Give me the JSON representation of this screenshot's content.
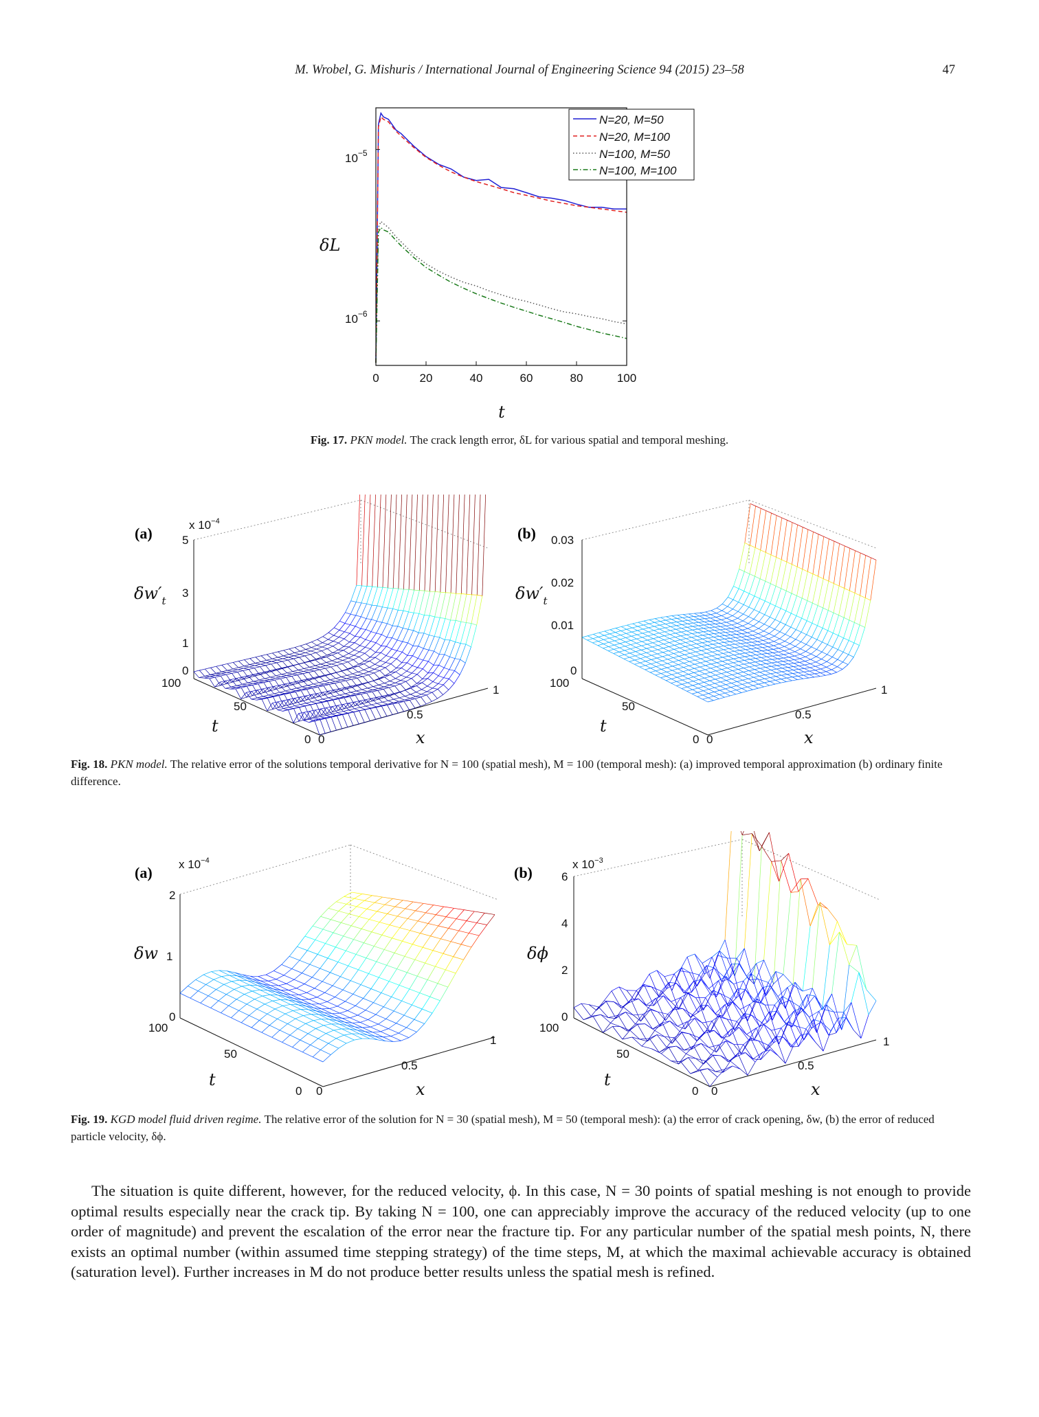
{
  "header": {
    "citation": "M. Wrobel, G. Mishuris / International Journal of Engineering Science 94 (2015) 23–58",
    "page_number": "47"
  },
  "fig17": {
    "caption_label": "Fig. 17.",
    "caption_model": "PKN model.",
    "caption_text": "The crack length error, δL for various spatial and temporal meshing.",
    "ylabel": "δL",
    "xlabel": "t",
    "ytick_upper": "10",
    "ytick_upper_exp": "−5",
    "ytick_lower": "10",
    "ytick_lower_exp": "−6",
    "xticks": [
      "0",
      "20",
      "40",
      "60",
      "80",
      "100"
    ],
    "legend": [
      "N=20, M=50",
      "N=20, M=100",
      "N=100, M=50",
      "N=100, M=100"
    ],
    "colors": [
      "#1f1fd4",
      "#e02020",
      "#555555",
      "#1a7a1a"
    ]
  },
  "chart_data": [
    {
      "type": "line",
      "title": "",
      "xlabel": "t",
      "ylabel": "δL",
      "yscale": "log",
      "xlim": [
        0,
        100
      ],
      "ylim": [
        5.5e-07,
        1.75e-05
      ],
      "grid": false,
      "legend_position": "top-right",
      "x": [
        0,
        1,
        2,
        3,
        5,
        8,
        10,
        15,
        20,
        25,
        30,
        35,
        40,
        45,
        50,
        55,
        60,
        65,
        70,
        75,
        80,
        85,
        90,
        95,
        100
      ],
      "series": [
        {
          "name": "N=20, M=50",
          "values": [
            5.7e-07,
            1.4e-05,
            1.63e-05,
            1.55e-05,
            1.5e-05,
            1.3e-05,
            1.24e-05,
            1.05e-05,
            9.1e-06,
            8.2e-06,
            7.7e-06,
            6.9e-06,
            6.6e-06,
            6.7e-06,
            6e-06,
            5.9e-06,
            5.6e-06,
            5.3e-06,
            5.2e-06,
            5.05e-06,
            4.8e-06,
            4.6e-06,
            4.6e-06,
            4.5e-06,
            4.5e-06
          ]
        },
        {
          "name": "N=20, M=100",
          "values": [
            5.7e-07,
            1.35e-05,
            1.55e-05,
            1.5e-05,
            1.45e-05,
            1.28e-05,
            1.2e-05,
            1.03e-05,
            9e-06,
            8.1e-06,
            7.4e-06,
            6.9e-06,
            6.5e-06,
            6.2e-06,
            5.9e-06,
            5.6e-06,
            5.4e-06,
            5.2e-06,
            5e-06,
            4.85e-06,
            4.7e-06,
            4.6e-06,
            4.5e-06,
            4.4e-06,
            4.3e-06
          ]
        },
        {
          "name": "N=100, M=50",
          "values": [
            5.7e-07,
            3.5e-06,
            3.8e-06,
            3.7e-06,
            3.5e-06,
            3.1e-06,
            2.9e-06,
            2.45e-06,
            2.15e-06,
            1.95e-06,
            1.8e-06,
            1.68e-06,
            1.6e-06,
            1.5e-06,
            1.42e-06,
            1.35e-06,
            1.3e-06,
            1.24e-06,
            1.18e-06,
            1.13e-06,
            1.1e-06,
            1.06e-06,
            1.03e-06,
            9.9e-07,
            9.6e-07
          ]
        },
        {
          "name": "N=100, M=100",
          "values": [
            5.7e-07,
            3.3e-06,
            3.5e-06,
            3.4e-06,
            3.3e-06,
            2.95e-06,
            2.75e-06,
            2.35e-06,
            2.05e-06,
            1.85e-06,
            1.68e-06,
            1.55e-06,
            1.44e-06,
            1.35e-06,
            1.27e-06,
            1.2e-06,
            1.14e-06,
            1.08e-06,
            1.03e-06,
            9.8e-07,
            9.3e-07,
            8.9e-07,
            8.5e-07,
            8.2e-07,
            7.9e-07
          ]
        }
      ]
    }
  ],
  "fig18": {
    "caption_label": "Fig. 18.",
    "caption_model": "PKN model.",
    "caption_text": "The relative error of the solutions temporal derivative for N = 100 (spatial mesh), M = 100 (temporal mesh): (a) improved temporal approximation (b) ordinary finite difference.",
    "panel_a": {
      "label": "(a)",
      "zscale": "x 10",
      "zscale_exp": "−4",
      "zlabel": "δw′",
      "zlabel_sub": "t",
      "zticks": [
        "5",
        "3",
        "1",
        "0"
      ],
      "tticks": [
        "100",
        "50",
        "0"
      ],
      "xticks": [
        "0",
        "0.5",
        "1"
      ],
      "tlabel": "t",
      "xlabel": "x"
    },
    "panel_b": {
      "label": "(b)",
      "zlabel": "δw′",
      "zlabel_sub": "t",
      "zticks": [
        "0.03",
        "0.02",
        "0.01",
        "0"
      ],
      "tticks": [
        "100",
        "50",
        "0"
      ],
      "xticks": [
        "0",
        "0.5",
        "1"
      ],
      "tlabel": "t",
      "xlabel": "x"
    }
  },
  "fig19": {
    "caption_label": "Fig. 19.",
    "caption_model": "KGD model fluid driven regime.",
    "caption_text": "The relative error of the solution for N = 30 (spatial mesh), M = 50 (temporal mesh): (a) the error of crack opening, δw, (b) the error of reduced particle velocity, δϕ.",
    "panel_a": {
      "label": "(a)",
      "zscale": "x 10",
      "zscale_exp": "−4",
      "zlabel": "δw",
      "zticks": [
        "2",
        "1",
        "0"
      ],
      "tticks": [
        "100",
        "50",
        "0"
      ],
      "xticks": [
        "0",
        "0.5",
        "1"
      ],
      "tlabel": "t",
      "xlabel": "x"
    },
    "panel_b": {
      "label": "(b)",
      "zscale": "x 10",
      "zscale_exp": "−3",
      "zlabel": "δϕ",
      "zticks": [
        "6",
        "4",
        "2",
        "0"
      ],
      "tticks": [
        "100",
        "50",
        "0"
      ],
      "xticks": [
        "0",
        "0.5",
        "1"
      ],
      "tlabel": "t",
      "xlabel": "x"
    }
  },
  "body": {
    "paragraph": "The situation is quite different, however, for the reduced velocity, ϕ. In this case, N = 30 points of spatial meshing is not enough to provide optimal results especially near the crack tip. By taking N = 100, one can appreciably improve the accuracy of the reduced velocity (up to one order of magnitude) and prevent the escalation of the error near the fracture tip. For any particular number of the spatial mesh points, N, there exists an optimal number (within assumed time stepping strategy) of the time steps, M, at which the maximal achievable accuracy is obtained (saturation level). Further increases in M do not produce better results unless the spatial mesh is refined."
  }
}
